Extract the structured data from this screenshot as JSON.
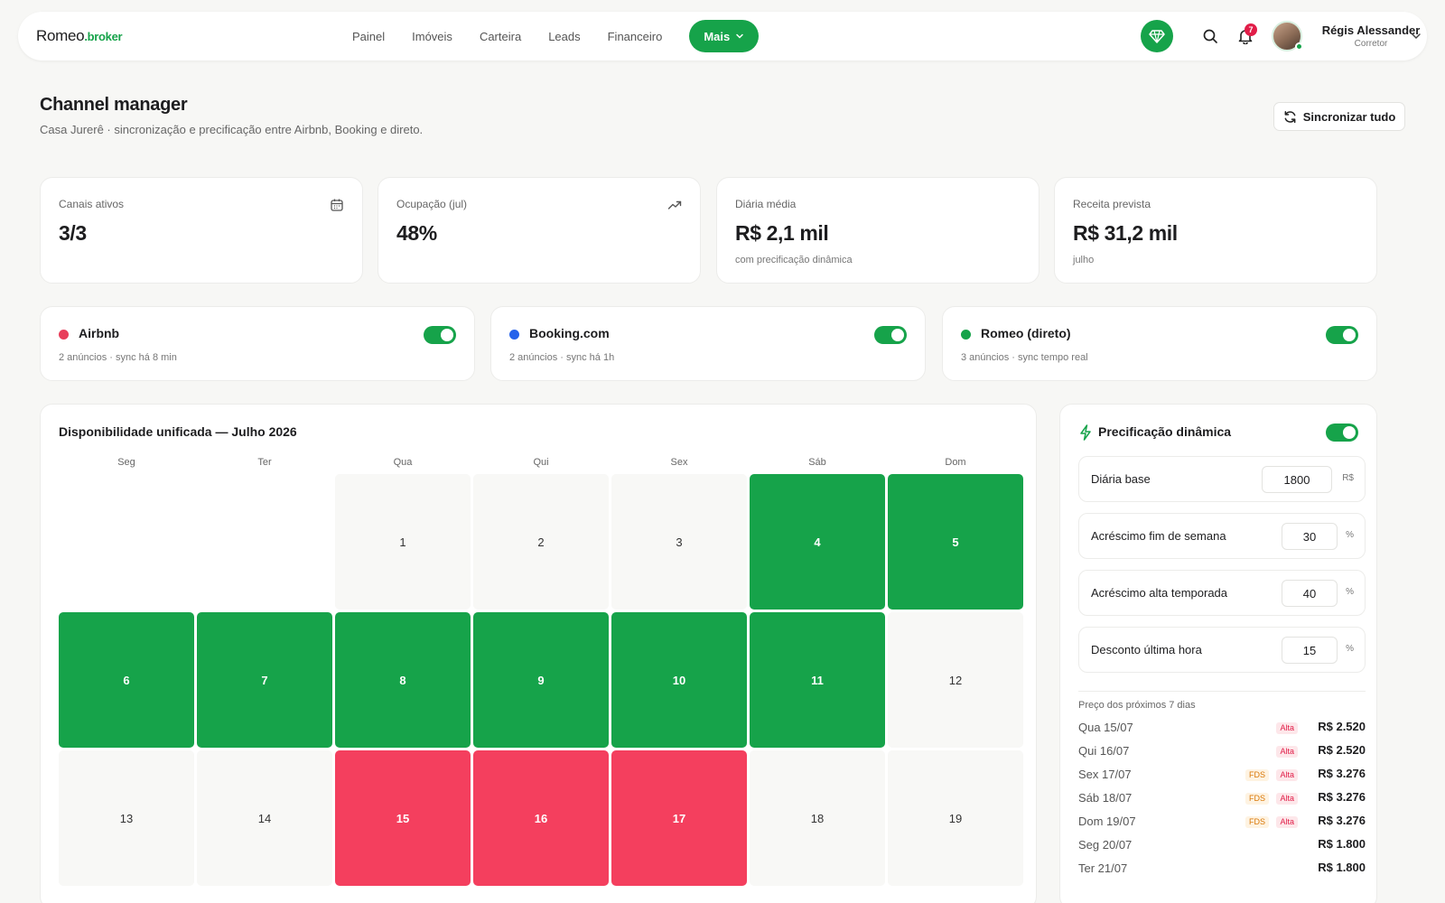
{
  "brand": {
    "name_a": "Romeo",
    "name_b": ".broker"
  },
  "nav": {
    "links": [
      "Painel",
      "Imóveis",
      "Carteira",
      "Leads",
      "Financeiro"
    ],
    "more_label": "Mais",
    "notifications_count": "7",
    "user": {
      "name": "Régis Alessander",
      "role": "Corretor"
    }
  },
  "header": {
    "title": "Channel manager",
    "subtitle": "Casa Jurerê · sincronização e precificação entre Airbnb, Booking e direto.",
    "sync_label": "Sincronizar tudo"
  },
  "stats": [
    {
      "label": "Canais ativos",
      "value": "3/3",
      "note": "",
      "icon": "calendar-icon"
    },
    {
      "label": "Ocupação (jul)",
      "value": "48%",
      "note": "",
      "icon": "trending-up-icon"
    },
    {
      "label": "Diária média",
      "value": "R$ 2,1 mil",
      "note": "com precificação dinâmica"
    },
    {
      "label": "Receita prevista",
      "value": "R$ 31,2 mil",
      "note": "julho"
    }
  ],
  "channels": [
    {
      "name": "Airbnb",
      "meta": "2 anúncios · sync há 8 min",
      "color": "#e83f5b",
      "enabled": true
    },
    {
      "name": "Booking.com",
      "meta": "2 anúncios · sync há 1h",
      "color": "#2563eb",
      "enabled": true
    },
    {
      "name": "Romeo (direto)",
      "meta": "3 anúncios · sync tempo real",
      "color": "#16a34a",
      "enabled": true
    }
  ],
  "calendar": {
    "title": "Disponibilidade unificada — Julho 2026",
    "weekdays": [
      "Seg",
      "Ter",
      "Qua",
      "Qui",
      "Sex",
      "Sáb",
      "Dom"
    ],
    "first_weekday_index": 2,
    "days": [
      {
        "d": "1",
        "status": "free"
      },
      {
        "d": "2",
        "status": "free"
      },
      {
        "d": "3",
        "status": "free"
      },
      {
        "d": "4",
        "status": "booked"
      },
      {
        "d": "5",
        "status": "booked"
      },
      {
        "d": "6",
        "status": "booked"
      },
      {
        "d": "7",
        "status": "booked"
      },
      {
        "d": "8",
        "status": "booked"
      },
      {
        "d": "9",
        "status": "booked"
      },
      {
        "d": "10",
        "status": "booked"
      },
      {
        "d": "11",
        "status": "booked"
      },
      {
        "d": "12",
        "status": "free"
      },
      {
        "d": "13",
        "status": "free"
      },
      {
        "d": "14",
        "status": "free"
      },
      {
        "d": "15",
        "status": "blocked"
      },
      {
        "d": "16",
        "status": "blocked"
      },
      {
        "d": "17",
        "status": "blocked"
      },
      {
        "d": "18",
        "status": "free"
      },
      {
        "d": "19",
        "status": "free"
      }
    ],
    "colors": {
      "booked": "#16a34a",
      "blocked": "#f43f5e",
      "free": "#f8f8f6"
    }
  },
  "pricing": {
    "title": "Precificação dinâmica",
    "enabled": true,
    "fields": [
      {
        "label": "Diária base",
        "value": "1800",
        "unit": "R$"
      },
      {
        "label": "Acréscimo fim de semana",
        "value": "30",
        "unit": "%"
      },
      {
        "label": "Acréscimo alta temporada",
        "value": "40",
        "unit": "%"
      },
      {
        "label": "Desconto última hora",
        "value": "15",
        "unit": "%"
      }
    ],
    "next_days_title": "Preço dos próximos 7 dias",
    "next_days": [
      {
        "day": "Qua 15/07",
        "fds": "",
        "alta": "Alta",
        "price": "R$ 2.520"
      },
      {
        "day": "Qui 16/07",
        "fds": "",
        "alta": "Alta",
        "price": "R$ 2.520"
      },
      {
        "day": "Sex 17/07",
        "fds": "FDS",
        "alta": "Alta",
        "price": "R$ 3.276"
      },
      {
        "day": "Sáb 18/07",
        "fds": "FDS",
        "alta": "Alta",
        "price": "R$ 3.276"
      },
      {
        "day": "Dom 19/07",
        "fds": "FDS",
        "alta": "Alta",
        "price": "R$ 3.276"
      },
      {
        "day": "Seg 20/07",
        "fds": "",
        "alta": "",
        "price": "R$ 1.800"
      },
      {
        "day": "Ter 21/07",
        "fds": "",
        "alta": "",
        "price": "R$ 1.800"
      }
    ]
  }
}
